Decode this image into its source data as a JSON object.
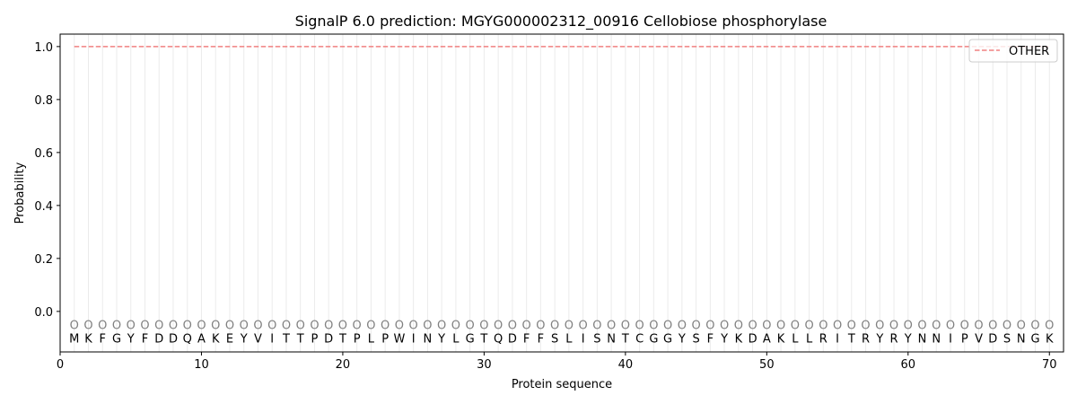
{
  "chart_data": {
    "type": "line",
    "title": "SignalP 6.0 prediction: MGYG000002312_00916 Cellobiose phosphorylase",
    "xlabel": "Protein sequence",
    "ylabel": "Probability",
    "xlim": [
      0,
      71
    ],
    "ylim": [
      -0.153,
      1.047
    ],
    "xticks": [
      0,
      10,
      20,
      30,
      40,
      50,
      60,
      70
    ],
    "yticks": [
      0.0,
      0.2,
      0.4,
      0.6,
      0.8,
      1.0
    ],
    "ytick_labels": [
      "0.0",
      "0.2",
      "0.4",
      "0.6",
      "0.8",
      "1.0"
    ],
    "legend_position": "top-right",
    "series": [
      {
        "name": "OTHER",
        "color": "#f08080",
        "style": "dashed",
        "x": [
          1,
          70
        ],
        "y": [
          1.0,
          1.0
        ]
      }
    ],
    "sequence": [
      "M",
      "K",
      "F",
      "G",
      "Y",
      "F",
      "D",
      "D",
      "Q",
      "A",
      "K",
      "E",
      "Y",
      "V",
      "I",
      "T",
      "T",
      "P",
      "D",
      "T",
      "P",
      "L",
      "P",
      "W",
      "I",
      "N",
      "Y",
      "L",
      "G",
      "T",
      "Q",
      "D",
      "F",
      "F",
      "S",
      "L",
      "I",
      "S",
      "N",
      "T",
      "C",
      "G",
      "G",
      "Y",
      "S",
      "F",
      "Y",
      "K",
      "D",
      "A",
      "K",
      "L",
      "L",
      "R",
      "I",
      "T",
      "R",
      "Y",
      "R",
      "Y",
      "N",
      "N",
      "I",
      "P",
      "V",
      "D",
      "S",
      "N",
      "G",
      "K"
    ],
    "prediction_label": "O",
    "marker_color": "#808080",
    "grid_color": "#ebebeb"
  }
}
